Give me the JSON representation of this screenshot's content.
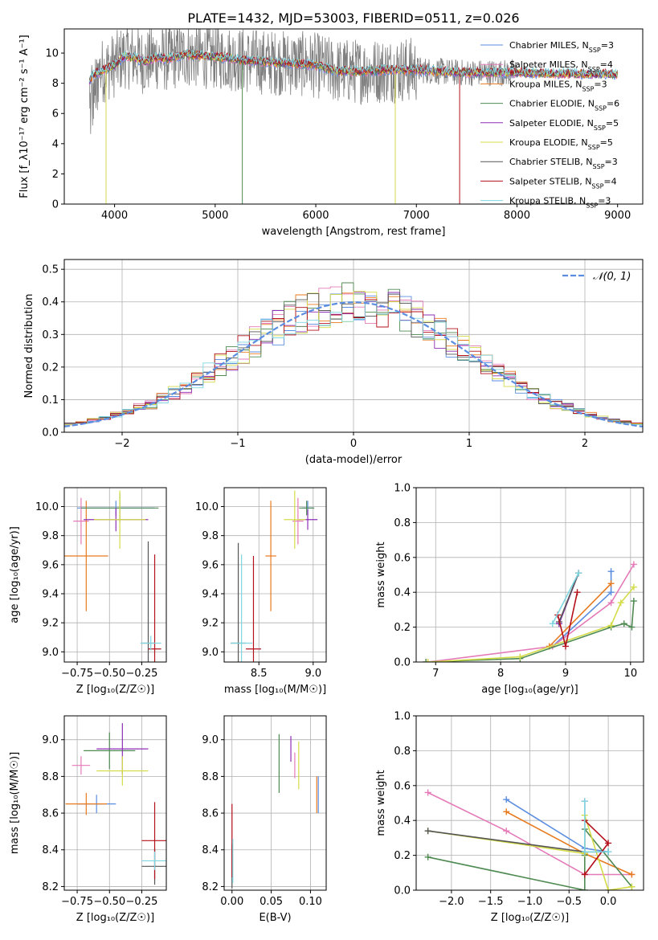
{
  "title": "PLATE=1432, MJD=53003, FIBERID=0511, z=0.026",
  "colors": {
    "chabrier_miles": "#5b8de0",
    "salpeter_miles": "#e47ab8",
    "kroupa_miles": "#e87a1e",
    "chabrier_elodie": "#4f8a52",
    "salpeter_elodie": "#8e2fb5",
    "kroupa_elodie": "#d4dc48",
    "chabrier_stelib": "#555555",
    "salpeter_stelib": "#b4111c",
    "kroupa_stelib": "#7fd6e0",
    "normal": "#5b8de0",
    "grid": "#b0b0b0"
  },
  "chart_data": [
    {
      "id": "spectrum",
      "type": "line",
      "title": "PLATE=1432, MJD=53003, FIBERID=0511, z=0.026",
      "xlabel": "wavelength [Angstrom, rest frame]",
      "ylabel": "Flux [f_λ10⁻¹⁷ erg cm⁻² s⁻¹ A⁻¹]",
      "xlim": [
        3500,
        9250
      ],
      "ylim": [
        0,
        11.6
      ],
      "xticks": [
        "4000",
        "5000",
        "6000",
        "7000",
        "8000",
        "9000"
      ],
      "yticks": [
        "0",
        "2",
        "4",
        "6",
        "8",
        "10"
      ],
      "grid": false,
      "legend_position": "top-right",
      "legend": [
        {
          "key": "chabrier_miles",
          "label": "Chabrier MILES, N",
          "sub": "SSP",
          "suffix": "=3"
        },
        {
          "key": "salpeter_miles",
          "label": "Salpeter MILES, N",
          "sub": "SSP",
          "suffix": "=4"
        },
        {
          "key": "kroupa_miles",
          "label": "Kroupa MILES, N",
          "sub": "SSP",
          "suffix": "=3"
        },
        {
          "key": "chabrier_elodie",
          "label": "Chabrier ELODIE, N",
          "sub": "SSP",
          "suffix": "=6"
        },
        {
          "key": "salpeter_elodie",
          "label": "Salpeter ELODIE, N",
          "sub": "SSP",
          "suffix": "=5"
        },
        {
          "key": "kroupa_elodie",
          "label": "Kroupa ELODIE, N",
          "sub": "SSP",
          "suffix": "=5"
        },
        {
          "key": "chabrier_stelib",
          "label": "Chabrier STELIB, N",
          "sub": "SSP",
          "suffix": "=3"
        },
        {
          "key": "salpeter_stelib",
          "label": "Salpeter STELIB, N",
          "sub": "SSP",
          "suffix": "=4"
        },
        {
          "key": "kroupa_stelib",
          "label": "Kroupa STELIB, N",
          "sub": "SSP",
          "suffix": "=3"
        }
      ],
      "model_continuum": [
        [
          3750,
          8.2
        ],
        [
          3800,
          8.6
        ],
        [
          3900,
          8.9
        ],
        [
          4000,
          9.2
        ],
        [
          4100,
          9.8
        ],
        [
          4200,
          9.7
        ],
        [
          4300,
          9.4
        ],
        [
          4400,
          9.7
        ],
        [
          4500,
          9.6
        ],
        [
          4700,
          9.9
        ],
        [
          4900,
          9.8
        ],
        [
          5100,
          9.7
        ],
        [
          5300,
          9.5
        ],
        [
          5500,
          9.4
        ],
        [
          5800,
          9.3
        ],
        [
          6000,
          9.2
        ],
        [
          6200,
          8.8
        ],
        [
          6500,
          8.8
        ],
        [
          6800,
          8.9
        ],
        [
          7000,
          8.9
        ],
        [
          7200,
          8.8
        ],
        [
          7400,
          8.7
        ],
        [
          7600,
          8.7
        ],
        [
          8000,
          8.7
        ],
        [
          8400,
          8.65
        ],
        [
          8800,
          8.6
        ],
        [
          9000,
          8.6
        ]
      ],
      "series_dips": [
        {
          "key": "kroupa_elodie",
          "x": 3915,
          "y": 0
        },
        {
          "key": "chabrier_elodie",
          "x": 5270,
          "y": 0
        },
        {
          "key": "kroupa_elodie",
          "x": 6790,
          "y": 0
        },
        {
          "key": "salpeter_stelib",
          "x": 7430,
          "y": 0
        }
      ]
    },
    {
      "id": "residuals",
      "type": "histogram",
      "xlabel": "(data-model)/error",
      "ylabel": "Normed distribution",
      "xlim": [
        -2.5,
        2.5
      ],
      "ylim": [
        0,
        0.53
      ],
      "xticks": [
        -2,
        -1,
        0,
        1,
        2
      ],
      "yticks": [
        "0.0",
        "0.1",
        "0.2",
        "0.3",
        "0.4",
        "0.5"
      ],
      "grid": true,
      "legend_position": "top-right",
      "reference_curve": "N(0,1)",
      "legend": [
        {
          "key": "normal",
          "label": "𝒩(0, 1)"
        }
      ]
    },
    {
      "id": "age-vs-Z",
      "type": "errorbar",
      "xlabel": "Z [log₁₀(Z/Z☉)]",
      "ylabel": "age  [log₁₀(age/yr)]",
      "xlim": [
        -0.85,
        -0.06
      ],
      "ylim": [
        8.93,
        10.13
      ],
      "xticks": [
        "−0.75",
        "−0.50",
        "−0.25"
      ],
      "xtickvals": [
        -0.75,
        -0.5,
        -0.25
      ],
      "yticks": [
        "9.0",
        "9.2",
        "9.4",
        "9.6",
        "9.8",
        "10.0"
      ],
      "grid": true,
      "points": [
        {
          "key": "chabrier_miles",
          "x": -0.45,
          "y": 9.99,
          "xerr": 0.3,
          "yerr": 0.05
        },
        {
          "key": "salpeter_miles",
          "x": -0.72,
          "y": 9.9,
          "xerr": 0.06,
          "yerr": 0.16
        },
        {
          "key": "kroupa_miles",
          "x": -0.68,
          "y": 9.66,
          "xerr": 0.17,
          "yerr": 0.38
        },
        {
          "key": "chabrier_elodie",
          "x": -0.42,
          "y": 9.99,
          "xerr": 0.3,
          "yerr": 0.1
        },
        {
          "key": "salpeter_elodie",
          "x": -0.45,
          "y": 9.91,
          "xerr": 0.25,
          "yerr": 0.08
        },
        {
          "key": "kroupa_elodie",
          "x": -0.42,
          "y": 9.91,
          "xerr": 0.2,
          "yerr": 0.2
        },
        {
          "key": "chabrier_stelib",
          "x": -0.2,
          "y": 9.06,
          "xerr": 0.05,
          "yerr": 0.7
        },
        {
          "key": "salpeter_stelib",
          "x": -0.15,
          "y": 9.02,
          "xerr": 0.05,
          "yerr": 0.65
        },
        {
          "key": "kroupa_stelib",
          "x": -0.18,
          "y": 9.06,
          "xerr": 0.08,
          "yerr": 0.05
        }
      ]
    },
    {
      "id": "age-vs-mass",
      "type": "errorbar",
      "xlabel": "mass [log₁₀(M/M☉)]",
      "ylabel": "",
      "xlim": [
        8.18,
        9.12
      ],
      "ylim": [
        8.93,
        10.13
      ],
      "xticks": [
        "8.5",
        "9.0"
      ],
      "xtickvals": [
        8.5,
        9.0
      ],
      "yticks": [
        "9.0",
        "9.2",
        "9.4",
        "9.6",
        "9.8",
        "10.0"
      ],
      "grid": true,
      "points": [
        {
          "key": "chabrier_miles",
          "x": 8.95,
          "y": 9.99,
          "xerr": 0.05,
          "yerr": 0.05
        },
        {
          "key": "salpeter_miles",
          "x": 8.86,
          "y": 9.9,
          "xerr": 0.05,
          "yerr": 0.16
        },
        {
          "key": "kroupa_miles",
          "x": 8.61,
          "y": 9.66,
          "xerr": 0.05,
          "yerr": 0.38
        },
        {
          "key": "chabrier_elodie",
          "x": 8.94,
          "y": 9.99,
          "xerr": 0.07,
          "yerr": 0.05
        },
        {
          "key": "salpeter_elodie",
          "x": 8.95,
          "y": 9.91,
          "xerr": 0.09,
          "yerr": 0.07
        },
        {
          "key": "kroupa_elodie",
          "x": 8.83,
          "y": 9.91,
          "xerr": 0.1,
          "yerr": 0.2
        },
        {
          "key": "chabrier_stelib",
          "x": 8.31,
          "y": 9.06,
          "xerr": 0.07,
          "yerr": 0.69
        },
        {
          "key": "salpeter_stelib",
          "x": 8.45,
          "y": 9.02,
          "xerr": 0.07,
          "yerr": 0.64
        },
        {
          "key": "kroupa_stelib",
          "x": 8.34,
          "y": 9.06,
          "xerr": 0.1,
          "yerr": 0.61
        }
      ]
    },
    {
      "id": "weight-vs-age",
      "type": "line",
      "xlabel": "age  [log₁₀(age/yr)]",
      "ylabel": "mass weight",
      "xlim": [
        6.7,
        10.2
      ],
      "ylim": [
        0,
        1.0
      ],
      "xticks": [
        "7",
        "8",
        "9",
        "10"
      ],
      "xtickvals": [
        7,
        8,
        9,
        10
      ],
      "yticks": [
        "0.0",
        "0.2",
        "0.4",
        "0.6",
        "0.8",
        "1.0"
      ],
      "grid": true,
      "series": [
        {
          "key": "chabrier_miles",
          "points": [
            [
              8.8,
              0.09
            ],
            [
              9.7,
              0.4
            ],
            [
              9.7,
              0.52
            ]
          ]
        },
        {
          "key": "salpeter_miles",
          "points": [
            [
              6.88,
              0.0
            ],
            [
              8.8,
              0.09
            ],
            [
              9.7,
              0.34
            ],
            [
              10.05,
              0.56
            ]
          ]
        },
        {
          "key": "kroupa_miles",
          "points": [
            [
              8.75,
              0.09
            ],
            [
              9.7,
              0.45
            ]
          ]
        },
        {
          "key": "chabrier_elodie",
          "points": [
            [
              6.85,
              0.0
            ],
            [
              8.3,
              0.02
            ],
            [
              9.7,
              0.2
            ],
            [
              9.9,
              0.22
            ],
            [
              10.02,
              0.2
            ],
            [
              10.05,
              0.35
            ]
          ]
        },
        {
          "key": "salpeter_elodie",
          "points": [
            [
              8.9,
              0.22
            ],
            [
              9.2,
              0.51
            ]
          ]
        },
        {
          "key": "kroupa_elodie",
          "points": [
            [
              6.88,
              0.0
            ],
            [
              8.3,
              0.03
            ],
            [
              9.7,
              0.21
            ],
            [
              9.85,
              0.34
            ],
            [
              10.05,
              0.43
            ]
          ]
        },
        {
          "key": "chabrier_stelib",
          "points": [
            [
              8.9,
              0.23
            ],
            [
              9.2,
              0.51
            ]
          ]
        },
        {
          "key": "salpeter_stelib",
          "points": [
            [
              8.88,
              0.27
            ],
            [
              9.0,
              0.09
            ],
            [
              9.18,
              0.4
            ]
          ]
        },
        {
          "key": "kroupa_stelib",
          "points": [
            [
              8.8,
              0.22
            ],
            [
              9.2,
              0.51
            ]
          ]
        }
      ]
    },
    {
      "id": "mass-vs-Z",
      "type": "errorbar",
      "xlabel": "Z [log₁₀(Z/Z☉)]",
      "ylabel": "mass [log₁₀(M/M☉)]",
      "xlim": [
        -0.85,
        -0.06
      ],
      "ylim": [
        8.18,
        9.13
      ],
      "xticks": [
        "−0.75",
        "−0.50",
        "−0.25"
      ],
      "xtickvals": [
        -0.75,
        -0.5,
        -0.25
      ],
      "yticks": [
        "8.2",
        "8.4",
        "8.6",
        "8.8",
        "9.0"
      ],
      "grid": true,
      "points": [
        {
          "key": "chabrier_miles",
          "x": -0.6,
          "y": 8.65,
          "xerr": 0.15,
          "yerr": 0.05
        },
        {
          "key": "salpeter_miles",
          "x": -0.72,
          "y": 8.86,
          "xerr": 0.07,
          "yerr": 0.05
        },
        {
          "key": "kroupa_miles",
          "x": -0.68,
          "y": 8.65,
          "xerr": 0.16,
          "yerr": 0.06
        },
        {
          "key": "chabrier_elodie",
          "x": -0.5,
          "y": 8.94,
          "xerr": 0.2,
          "yerr": 0.1
        },
        {
          "key": "salpeter_elodie",
          "x": -0.4,
          "y": 8.95,
          "xerr": 0.2,
          "yerr": 0.14
        },
        {
          "key": "kroupa_elodie",
          "x": -0.4,
          "y": 8.83,
          "xerr": 0.2,
          "yerr": 0.08
        },
        {
          "key": "chabrier_stelib",
          "x": -0.15,
          "y": 8.31,
          "xerr": 0.1,
          "yerr": 0.1
        },
        {
          "key": "salpeter_stelib",
          "x": -0.15,
          "y": 8.45,
          "xerr": 0.1,
          "yerr": 0.21
        },
        {
          "key": "kroupa_stelib",
          "x": -0.15,
          "y": 8.34,
          "xerr": 0.1,
          "yerr": 0.05
        }
      ]
    },
    {
      "id": "mass-vs-EBV",
      "type": "errorbar",
      "xlabel": "E(B-V)",
      "ylabel": "",
      "xlim": [
        -0.01,
        0.12
      ],
      "ylim": [
        8.18,
        9.13
      ],
      "xticks": [
        "0.00",
        "0.05",
        "0.10"
      ],
      "xtickvals": [
        0.0,
        0.05,
        0.1
      ],
      "yticks": [
        "8.2",
        "8.4",
        "8.6",
        "8.8",
        "9.0"
      ],
      "grid": true,
      "points": [
        {
          "key": "chabrier_miles",
          "x": 0.11,
          "y": 8.7,
          "xerr": 0,
          "yerr": 0.1
        },
        {
          "key": "salpeter_miles",
          "x": 0.08,
          "y": 8.86,
          "xerr": 0,
          "yerr": 0.07
        },
        {
          "key": "kroupa_miles",
          "x": 0.108,
          "y": 8.7,
          "xerr": 0,
          "yerr": 0.1
        },
        {
          "key": "chabrier_elodie",
          "x": 0.06,
          "y": 8.87,
          "xerr": 0,
          "yerr": 0.16
        },
        {
          "key": "salpeter_elodie",
          "x": 0.075,
          "y": 8.95,
          "xerr": 0,
          "yerr": 0.07
        },
        {
          "key": "kroupa_elodie",
          "x": 0.085,
          "y": 8.86,
          "xerr": 0,
          "yerr": 0.13
        },
        {
          "key": "chabrier_stelib",
          "x": 0.0,
          "y": 8.31,
          "xerr": 0,
          "yerr": 0.12
        },
        {
          "key": "salpeter_stelib",
          "x": 0.0,
          "y": 8.45,
          "xerr": 0,
          "yerr": 0.2
        },
        {
          "key": "kroupa_stelib",
          "x": 0.001,
          "y": 8.34,
          "xerr": 0,
          "yerr": 0.12
        }
      ]
    },
    {
      "id": "weight-vs-Z",
      "type": "line",
      "xlabel": "Z [log₁₀(Z/Z☉)]",
      "ylabel": "mass weight",
      "xlim": [
        -2.45,
        0.45
      ],
      "ylim": [
        0,
        1.0
      ],
      "xticks": [
        "−2.0",
        "−1.5",
        "−1.0",
        "−0.5",
        "0.0"
      ],
      "xtickvals": [
        -2.0,
        -1.5,
        -1.0,
        -0.5,
        0.0
      ],
      "yticks": [
        "0.0",
        "0.2",
        "0.4",
        "0.6",
        "0.8",
        "1.0"
      ],
      "grid": true,
      "series": [
        {
          "key": "chabrier_miles",
          "points": [
            [
              -1.3,
              0.52
            ],
            [
              -0.3,
              0.24
            ],
            [
              0.0,
              0.22
            ]
          ]
        },
        {
          "key": "salpeter_miles",
          "points": [
            [
              -2.3,
              0.56
            ],
            [
              -1.3,
              0.34
            ],
            [
              -0.3,
              0.09
            ],
            [
              0.3,
              0.09
            ]
          ]
        },
        {
          "key": "kroupa_miles",
          "points": [
            [
              -1.3,
              0.45
            ],
            [
              -0.3,
              0.21
            ],
            [
              0.3,
              0.09
            ]
          ]
        },
        {
          "key": "chabrier_elodie",
          "points": [
            [
              -2.3,
              0.19
            ],
            [
              -0.3,
              0.0
            ],
            [
              -0.3,
              0.2
            ],
            [
              -0.3,
              0.35
            ],
            [
              0.3,
              0.02
            ]
          ]
        },
        {
          "key": "salpeter_elodie",
          "points": [
            [
              -0.3,
              0.51
            ],
            [
              -0.3,
              0.22
            ]
          ]
        },
        {
          "key": "kroupa_elodie",
          "points": [
            [
              -2.3,
              0.34
            ],
            [
              -0.3,
              0.21
            ],
            [
              -0.3,
              0.43
            ],
            [
              0.0,
              0.0
            ],
            [
              0.3,
              0.02
            ]
          ]
        },
        {
          "key": "chabrier_stelib",
          "points": [
            [
              -2.3,
              0.34
            ],
            [
              -0.3,
              0.22
            ],
            [
              0.0,
              0.22
            ]
          ]
        },
        {
          "key": "salpeter_stelib",
          "points": [
            [
              -0.3,
              0.09
            ],
            [
              0.0,
              0.27
            ],
            [
              -0.3,
              0.4
            ]
          ]
        },
        {
          "key": "kroupa_stelib",
          "points": [
            [
              -0.3,
              0.51
            ],
            [
              -0.3,
              0.22
            ],
            [
              0.0,
              0.22
            ]
          ]
        }
      ]
    }
  ]
}
